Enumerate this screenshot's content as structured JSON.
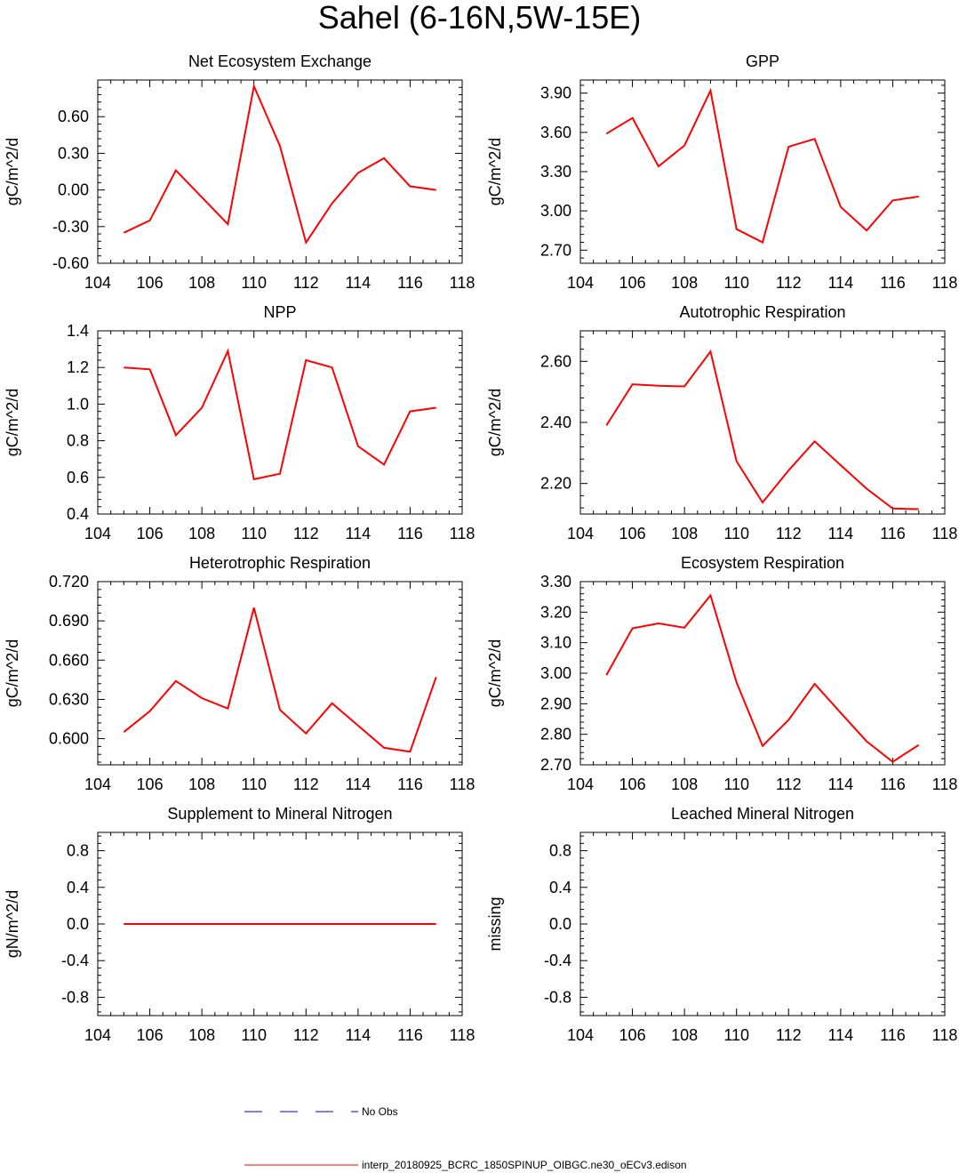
{
  "title": "Sahel (6-16N,5W-15E)",
  "colors": {
    "model": "#ff0000",
    "obs": "#0000ff"
  },
  "legend": [
    {
      "label": "No Obs",
      "style": "dashed",
      "color": "#0000ff"
    },
    {
      "label": "interp_20180925_BCRC_1850SPINUP_OIBGC.ne30_oECv3.edison",
      "style": "solid",
      "color": "#ff0000"
    }
  ],
  "chart_data": [
    {
      "type": "line",
      "title": "Net Ecosystem Exchange",
      "ylabel": "gC/m^2/d",
      "xlabel": "",
      "xlim": [
        104,
        118
      ],
      "xticks": [
        "104",
        "106",
        "108",
        "110",
        "112",
        "114",
        "116",
        "118"
      ],
      "ylim": [
        -0.6,
        0.9
      ],
      "yticks": [
        -0.6,
        -0.3,
        0.0,
        0.3,
        0.6
      ],
      "yticklabels": [
        "-0.60",
        "-0.30",
        "0.00",
        "0.30",
        "0.60"
      ],
      "x": [
        105,
        106,
        107,
        108,
        109,
        110,
        111,
        112,
        113,
        114,
        115,
        116,
        117
      ],
      "series": [
        {
          "name": "interp_20180925_BCRC_1850SPINUP_OIBGC.ne30_oECv3.edison",
          "values": [
            -0.35,
            -0.25,
            0.16,
            -0.06,
            -0.28,
            0.85,
            0.36,
            -0.43,
            -0.11,
            0.14,
            0.26,
            0.03,
            0.0
          ]
        }
      ]
    },
    {
      "type": "line",
      "title": "GPP",
      "ylabel": "gC/m^2/d",
      "xlabel": "",
      "xlim": [
        104,
        118
      ],
      "xticks": [
        "104",
        "106",
        "108",
        "110",
        "112",
        "114",
        "116",
        "118"
      ],
      "ylim": [
        2.6,
        4.0
      ],
      "yticks": [
        2.7,
        3.0,
        3.3,
        3.6,
        3.9
      ],
      "yticklabels": [
        "2.70",
        "3.00",
        "3.30",
        "3.60",
        "3.90"
      ],
      "x": [
        105,
        106,
        107,
        108,
        109,
        110,
        111,
        112,
        113,
        114,
        115,
        116,
        117
      ],
      "series": [
        {
          "name": "interp_20180925_BCRC_1850SPINUP_OIBGC.ne30_oECv3.edison",
          "values": [
            3.59,
            3.71,
            3.34,
            3.5,
            3.92,
            2.86,
            2.76,
            3.49,
            3.55,
            3.03,
            2.85,
            3.08,
            3.11
          ]
        }
      ]
    },
    {
      "type": "line",
      "title": "NPP",
      "ylabel": "gC/m^2/d",
      "xlabel": "",
      "xlim": [
        104,
        118
      ],
      "xticks": [
        "104",
        "106",
        "108",
        "110",
        "112",
        "114",
        "116",
        "118"
      ],
      "ylim": [
        0.4,
        1.4
      ],
      "yticks": [
        0.4,
        0.6,
        0.8,
        1.0,
        1.2,
        1.4
      ],
      "yticklabels": [
        "0.4",
        "0.6",
        "0.8",
        "1.0",
        "1.2",
        "1.4"
      ],
      "x": [
        105,
        106,
        107,
        108,
        109,
        110,
        111,
        112,
        113,
        114,
        115,
        116,
        117
      ],
      "series": [
        {
          "name": "interp_20180925_BCRC_1850SPINUP_OIBGC.ne30_oECv3.edison",
          "values": [
            1.2,
            1.19,
            0.83,
            0.98,
            1.29,
            0.59,
            0.62,
            1.24,
            1.2,
            0.77,
            0.67,
            0.96,
            0.98
          ]
        }
      ]
    },
    {
      "type": "line",
      "title": "Autotrophic Respiration",
      "ylabel": "gC/m^2/d",
      "xlabel": "",
      "xlim": [
        104,
        118
      ],
      "xticks": [
        "104",
        "106",
        "108",
        "110",
        "112",
        "114",
        "116",
        "118"
      ],
      "ylim": [
        2.1,
        2.7
      ],
      "yticks": [
        2.2,
        2.4,
        2.6
      ],
      "yticklabels": [
        "2.20",
        "2.40",
        "2.60"
      ],
      "x": [
        105,
        106,
        107,
        108,
        109,
        110,
        111,
        112,
        113,
        114,
        115,
        116,
        117
      ],
      "series": [
        {
          "name": "interp_20180925_BCRC_1850SPINUP_OIBGC.ne30_oECv3.edison",
          "values": [
            2.39,
            2.525,
            2.52,
            2.518,
            2.632,
            2.273,
            2.138,
            2.243,
            2.338,
            2.26,
            2.183,
            2.118,
            2.116
          ]
        }
      ]
    },
    {
      "type": "line",
      "title": "Heterotrophic Respiration",
      "ylabel": "gC/m^2/d",
      "xlabel": "",
      "xlim": [
        104,
        118
      ],
      "xticks": [
        "104",
        "106",
        "108",
        "110",
        "112",
        "114",
        "116",
        "118"
      ],
      "ylim": [
        0.58,
        0.72
      ],
      "yticks": [
        0.6,
        0.63,
        0.66,
        0.69,
        0.72
      ],
      "yticklabels": [
        "0.600",
        "0.630",
        "0.660",
        "0.690",
        "0.720"
      ],
      "x": [
        105,
        106,
        107,
        108,
        109,
        110,
        111,
        112,
        113,
        114,
        115,
        116,
        117
      ],
      "series": [
        {
          "name": "interp_20180925_BCRC_1850SPINUP_OIBGC.ne30_oECv3.edison",
          "values": [
            0.605,
            0.621,
            0.644,
            0.631,
            0.623,
            0.7,
            0.622,
            0.604,
            0.627,
            0.61,
            0.593,
            0.59,
            0.647
          ]
        }
      ]
    },
    {
      "type": "line",
      "title": "Ecosystem Respiration",
      "ylabel": "gC/m^2/d",
      "xlabel": "",
      "xlim": [
        104,
        118
      ],
      "xticks": [
        "104",
        "106",
        "108",
        "110",
        "112",
        "114",
        "116",
        "118"
      ],
      "ylim": [
        2.7,
        3.3
      ],
      "yticks": [
        2.7,
        2.8,
        2.9,
        3.0,
        3.1,
        3.2,
        3.3
      ],
      "yticklabels": [
        "2.70",
        "2.80",
        "2.90",
        "3.00",
        "3.10",
        "3.20",
        "3.30"
      ],
      "x": [
        105,
        106,
        107,
        108,
        109,
        110,
        111,
        112,
        113,
        114,
        115,
        116,
        117
      ],
      "series": [
        {
          "name": "interp_20180925_BCRC_1850SPINUP_OIBGC.ne30_oECv3.edison",
          "values": [
            2.994,
            3.147,
            3.163,
            3.149,
            3.255,
            2.97,
            2.762,
            2.847,
            2.965,
            2.87,
            2.777,
            2.71,
            2.765
          ]
        }
      ]
    },
    {
      "type": "line",
      "title": "Supplement to Mineral Nitrogen",
      "ylabel": "gN/m^2/d",
      "xlabel": "",
      "xlim": [
        104,
        118
      ],
      "xticks": [
        "104",
        "106",
        "108",
        "110",
        "112",
        "114",
        "116",
        "118"
      ],
      "ylim": [
        -1.0,
        1.0
      ],
      "yticks": [
        -0.8,
        -0.4,
        0.0,
        0.4,
        0.8
      ],
      "yticklabels": [
        "-0.8",
        "-0.4",
        "0.0",
        "0.4",
        "0.8"
      ],
      "x": [
        105,
        106,
        107,
        108,
        109,
        110,
        111,
        112,
        113,
        114,
        115,
        116,
        117
      ],
      "series": [
        {
          "name": "interp_20180925_BCRC_1850SPINUP_OIBGC.ne30_oECv3.edison",
          "values": [
            0,
            0,
            0,
            0,
            0,
            0,
            0,
            0,
            0,
            0,
            0,
            0,
            0
          ]
        }
      ]
    },
    {
      "type": "line",
      "title": "Leached Mineral Nitrogen",
      "ylabel": "missing",
      "xlabel": "",
      "xlim": [
        104,
        118
      ],
      "xticks": [
        "104",
        "106",
        "108",
        "110",
        "112",
        "114",
        "116",
        "118"
      ],
      "ylim": [
        -1.0,
        1.0
      ],
      "yticks": [
        -0.8,
        -0.4,
        0.0,
        0.4,
        0.8
      ],
      "yticklabels": [
        "-0.8",
        "-0.4",
        "0.0",
        "0.4",
        "0.8"
      ],
      "x": [],
      "series": []
    }
  ]
}
